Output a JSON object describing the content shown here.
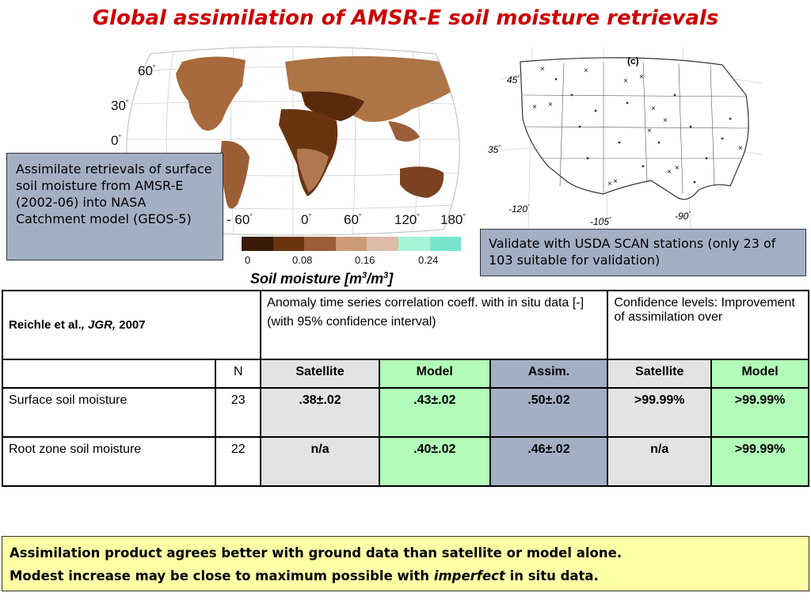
{
  "title": "Global assimilation of AMSR-E soil moisture retrievals",
  "world_map": {
    "lat_labels": [
      "60",
      "30",
      "0"
    ],
    "lon_labels": [
      "- 60",
      "0",
      "60",
      "120",
      "180"
    ],
    "degree_symbol": "°"
  },
  "callout_left": "Assimilate retrievals of surface soil moisture from AMSR-E (2002-06) into NASA Catchment model (GEOS-5)",
  "us_map": {
    "panel_label": "(c)",
    "lat_labels": [
      "45",
      "35"
    ],
    "lon_labels": [
      "-120",
      "-105",
      "-90"
    ]
  },
  "callout_right": "Validate with USDA SCAN stations (only 23 of 103 suitable for validation)",
  "colorbar": {
    "colors": [
      "#3b1a08",
      "#6a3410",
      "#9a5e3a",
      "#cd9a78",
      "#dcbca5",
      "#a6f3d6",
      "#78e6cc"
    ],
    "ticks": [
      "0",
      "0.08",
      "0.16",
      "0.24"
    ]
  },
  "colorbar_caption": {
    "text": "Soil moisture [m",
    "sup1": "3",
    "mid": "/m",
    "sup2": "3",
    "end": "]"
  },
  "table": {
    "citation_author": "Reichle et al.",
    "citation_journal": ", JGR,",
    "citation_year": " 2007",
    "header_corr_line1": "Anomaly time series correlation coeff. with in situ data [-]",
    "header_corr_line2": "(with 95% confidence interval)",
    "header_conf": "Confidence levels: Improvement of assimilation over",
    "sub_headers": [
      "N",
      "Satellite",
      "Model",
      "Assim.",
      "Satellite",
      "Model"
    ],
    "rows": [
      {
        "label": "Surface soil moisture",
        "n": "23",
        "satellite": ".38±.02",
        "model": ".43±.02",
        "assim": ".50±.02",
        "conf_satellite": ">99.99%",
        "conf_model": ">99.99%"
      },
      {
        "label": "Root zone soil moisture",
        "n": "22",
        "satellite": "n/a",
        "model": ".40±.02",
        "assim": ".46±.02",
        "conf_satellite": "n/a",
        "conf_model": ">99.99%"
      }
    ]
  },
  "note": {
    "line1": "Assimilation product agrees better with ground data than satellite or model alone.",
    "line2_pre": "Modest increase may be close to maximum possible with ",
    "line2_em": "imperfect",
    "line2_post": " in situ data."
  }
}
